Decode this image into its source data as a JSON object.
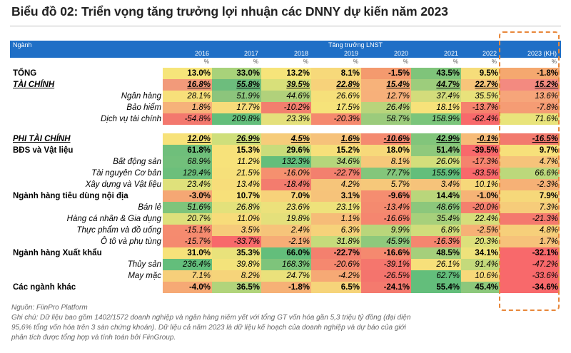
{
  "title": "Biểu đồ 02: Triển vọng tăng trưởng lợi nhuận các DNNY dự kiến năm 2023",
  "header": {
    "sector_label": "Ngành",
    "group_label": "Tăng trưởng LNST",
    "unit_symbol": "%"
  },
  "chart_data": {
    "type": "table",
    "title": "Biểu đồ 02: Triển vọng tăng trưởng lợi nhuận các DNNY dự kiến năm 2023",
    "columns": [
      "2016",
      "2017",
      "2018",
      "2019",
      "2020",
      "2021",
      "2022",
      "2023 (KH)"
    ],
    "rows": [
      {
        "label": "TỔNG",
        "style": "bold",
        "values": [
          "13.0%",
          "33.0%",
          "13.2%",
          "8.1%",
          "-1.5%",
          "43.5%",
          "9.5%",
          "-1.8%"
        ],
        "colors": [
          "#f6e57a",
          "#a8d27a",
          "#f6e47a",
          "#f7d97a",
          "#f49a6e",
          "#7fc47a",
          "#f6dd7a",
          "#f5a86f"
        ]
      },
      {
        "label": "TÀI CHÍNH",
        "style": "bold-italic-under",
        "values": [
          "16.8%",
          "55.8%",
          "39.5%",
          "22.8%",
          "15.4%",
          "44.7%",
          "22.7%",
          "15.2%"
        ],
        "colors": [
          "#f29a7a",
          "#6dbd7d",
          "#d8e07a",
          "#f7d27a",
          "#f7b27a",
          "#9dcd7c",
          "#f7c57a",
          "#f38a80"
        ]
      },
      {
        "label": "Ngân hàng",
        "style": "indent",
        "values": [
          "28.1%",
          "51.9%",
          "44.6%",
          "26.6%",
          "12.7%",
          "37.4%",
          "35.5%",
          "13.6%"
        ],
        "colors": [
          "#f7e07a",
          "#8cc57c",
          "#b1d17b",
          "#f6e07a",
          "#f7b07a",
          "#d3dc7b",
          "#e8e27b",
          "#f6a57a"
        ]
      },
      {
        "label": "Bảo hiểm",
        "style": "indent",
        "values": [
          "1.8%",
          "17.7%",
          "-10.2%",
          "17.5%",
          "26.4%",
          "18.1%",
          "-13.7%",
          "-7.8%"
        ],
        "colors": [
          "#f6b27a",
          "#f7dc7a",
          "#f27f6e",
          "#f6e37a",
          "#b9d47b",
          "#f7e27a",
          "#f5836e",
          "#f59c74"
        ]
      },
      {
        "label": "Dịch vụ tài chính",
        "style": "indent",
        "values": [
          "-54.8%",
          "209.8%",
          "23.3%",
          "-20.3%",
          "58.7%",
          "158.9%",
          "-62.4%",
          "71.6%"
        ],
        "colors": [
          "#f3786e",
          "#63be7b",
          "#e4e07b",
          "#f5896e",
          "#9bcb7c",
          "#7ac57b",
          "#f8696b",
          "#e9e47b"
        ]
      },
      {
        "label": "PHI TÀI CHÍNH",
        "style": "bold-italic-under",
        "values": [
          "12.0%",
          "26.9%",
          "4.5%",
          "1.6%",
          "-10.6%",
          "42.9%",
          "-0.1%",
          "-16.5%"
        ],
        "colors": [
          "#f7e27a",
          "#cfdf7b",
          "#f6cc7a",
          "#f6c27a",
          "#f48a70",
          "#82c57b",
          "#f6bb78",
          "#f27a6e"
        ]
      },
      {
        "label": "BĐS và Vật liệu",
        "style": "bold",
        "values": [
          "61.8%",
          "15.3%",
          "29.6%",
          "15.2%",
          "18.0%",
          "51.4%",
          "-39.5%",
          "9.7%"
        ],
        "colors": [
          "#6fbf7b",
          "#f7e27a",
          "#c9dc7b",
          "#f6e07a",
          "#f7d97a",
          "#8fc97c",
          "#f8696b",
          "#f7e07a"
        ]
      },
      {
        "label": "Bất động sản",
        "style": "indent",
        "values": [
          "68.9%",
          "11.2%",
          "132.3%",
          "34.6%",
          "8.1%",
          "26.0%",
          "-17.3%",
          "4.7%"
        ],
        "colors": [
          "#72c07b",
          "#f7e27a",
          "#63be7b",
          "#b5d67b",
          "#f6c87a",
          "#d3de7b",
          "#f5836e",
          "#f6c37a"
        ]
      },
      {
        "label": "Tài nguyên Cơ bản",
        "style": "indent",
        "values": [
          "129.4%",
          "21.5%",
          "-16.0%",
          "-22.7%",
          "77.7%",
          "155.9%",
          "-83.5%",
          "66.6%"
        ],
        "colors": [
          "#6cbf7b",
          "#f6e07a",
          "#f5906f",
          "#f3806e",
          "#84c67b",
          "#63be7b",
          "#f8696b",
          "#bcd87b"
        ]
      },
      {
        "label": "Xây dựng và Vật liệu",
        "style": "indent",
        "values": [
          "23.4%",
          "13.4%",
          "-18.4%",
          "4.2%",
          "5.7%",
          "3.4%",
          "10.1%",
          "-2.3%"
        ],
        "colors": [
          "#dfe17b",
          "#f7dd7a",
          "#f37c6e",
          "#f6c57a",
          "#f6c87a",
          "#f6c37a",
          "#f6d87a",
          "#f6b176"
        ]
      },
      {
        "label": "Ngành hàng tiêu dùng nội địa",
        "style": "bold",
        "values": [
          "-3.0%",
          "10.7%",
          "7.0%",
          "3.1%",
          "-9.6%",
          "14.4%",
          "-1.0%",
          "7.9%"
        ],
        "colors": [
          "#f5a774",
          "#f7e07a",
          "#f7d27a",
          "#f6c37a",
          "#f58d70",
          "#b9d67b",
          "#f6b376",
          "#f6d87a"
        ]
      },
      {
        "label": "Bán lẻ",
        "style": "indent",
        "values": [
          "51.6%",
          "26.8%",
          "23.6%",
          "23.1%",
          "-13.4%",
          "48.6%",
          "-20.0%",
          "7.3%"
        ],
        "colors": [
          "#7ec47b",
          "#e3e17b",
          "#ece17b",
          "#eee27b",
          "#f48a6f",
          "#8cc77c",
          "#f5806e",
          "#f6cc7a"
        ]
      },
      {
        "label": "Hàng cá nhân & Gia dụng",
        "style": "indent",
        "values": [
          "20.7%",
          "11.0%",
          "19.8%",
          "1.1%",
          "-16.6%",
          "35.4%",
          "22.4%",
          "-21.3%"
        ],
        "colors": [
          "#dde07b",
          "#f7dc7a",
          "#e4e07b",
          "#f6bc78",
          "#f5866f",
          "#a7d07b",
          "#d6de7b",
          "#f4796e"
        ]
      },
      {
        "label": "Thực phẩm và đồ uống",
        "style": "indent",
        "values": [
          "-15.1%",
          "3.5%",
          "2.4%",
          "6.3%",
          "9.9%",
          "6.8%",
          "-2.5%",
          "4.8%"
        ],
        "colors": [
          "#f58b6f",
          "#f6cb7a",
          "#f6c47a",
          "#f6d27a",
          "#b9d67b",
          "#d0dd7b",
          "#f6b176",
          "#f6cf7a"
        ]
      },
      {
        "label": "Ô tô và phụ tùng",
        "style": "indent",
        "values": [
          "-15.7%",
          "-33.7%",
          "-2.1%",
          "31.8%",
          "45.9%",
          "-16.3%",
          "20.3%",
          "1.7%"
        ],
        "colors": [
          "#f58a6f",
          "#f8696b",
          "#f6ad76",
          "#c5db7b",
          "#8ec97c",
          "#f5866f",
          "#dde07b",
          "#f6c27a"
        ]
      },
      {
        "label": "Ngành hàng Xuất khẩu",
        "style": "bold",
        "values": [
          "31.0%",
          "35.3%",
          "66.0%",
          "-22.7%",
          "-16.6%",
          "48.5%",
          "34.1%",
          "-32.1%"
        ],
        "colors": [
          "#f7e27a",
          "#e9e27b",
          "#63be7b",
          "#f4806e",
          "#f5896f",
          "#a5cf7b",
          "#eee27b",
          "#f8696b"
        ]
      },
      {
        "label": "Thủy sản",
        "style": "indent",
        "values": [
          "236.4%",
          "39.8%",
          "168.3%",
          "-20.6%",
          "-39.1%",
          "26.1%",
          "91.4%",
          "-47.2%"
        ],
        "colors": [
          "#63be7b",
          "#f3e37b",
          "#7ec47b",
          "#f5886f",
          "#f5766d",
          "#f7e07a",
          "#c4da7b",
          "#f8696b"
        ]
      },
      {
        "label": "May mặc",
        "style": "indent",
        "values": [
          "7.1%",
          "8.2%",
          "24.7%",
          "-4.2%",
          "-26.5%",
          "62.7%",
          "10.6%",
          "-33.6%"
        ],
        "colors": [
          "#f6cf7a",
          "#f6d47a",
          "#eae17b",
          "#f6a975",
          "#f4746d",
          "#63be7b",
          "#f7d97a",
          "#f8696b"
        ]
      },
      {
        "label": "Các ngành khác",
        "style": "bold",
        "values": [
          "-4.0%",
          "36.5%",
          "-1.8%",
          "6.5%",
          "-24.1%",
          "55.4%",
          "45.4%",
          "-34.6%"
        ],
        "colors": [
          "#f6a975",
          "#b1d47b",
          "#f6b176",
          "#f6d47a",
          "#f47a6e",
          "#63be7b",
          "#8cc87c",
          "#f8696b"
        ]
      }
    ]
  },
  "notes": {
    "source": "Nguồn: FiinPro Platform",
    "line1": "Ghi chú: Dữ liệu bao gồm 1402/1572 doanh nghiệp và ngân hàng niêm yết với tổng GT vốn hóa gần 5,3 triệu tỷ đồng (đại diện",
    "line2": "95,6% tổng vốn hóa trên 3 sàn chứng khoán). Dữ liệu cả năm 2023 là dữ liệu kế hoạch của doanh nghiệp và dự báo của giới",
    "line3": "phân tích được tổng hợp và tính toán bởi FiinGroup."
  }
}
